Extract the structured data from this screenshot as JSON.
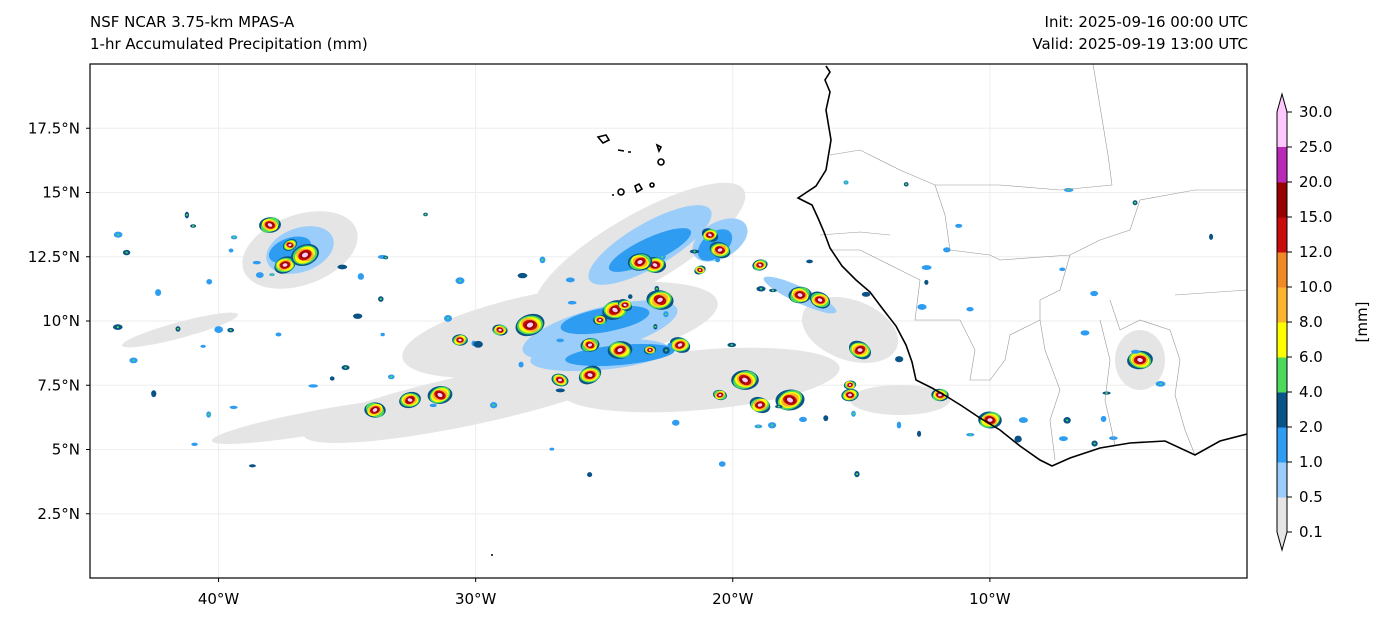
{
  "header": {
    "model": "NSF NCAR 3.75-km MPAS-A",
    "field": "1-hr Accumulated Precipitation (mm)",
    "init": "Init: 2025-09-16 00:00 UTC",
    "valid": "Valid: 2025-09-19 13:00 UTC"
  },
  "map": {
    "lon_range": [
      -45,
      0
    ],
    "lat_range": [
      0,
      20
    ],
    "lon_ticks": [
      {
        "v": -40,
        "label": "40°W"
      },
      {
        "v": -30,
        "label": "30°W"
      },
      {
        "v": -20,
        "label": "20°W"
      },
      {
        "v": -10,
        "label": "10°W"
      }
    ],
    "lat_ticks": [
      {
        "v": 17.5,
        "label": "17.5°N"
      },
      {
        "v": 15,
        "label": "15°N"
      },
      {
        "v": 12.5,
        "label": "12.5°N"
      },
      {
        "v": 10,
        "label": "10°N"
      },
      {
        "v": 7.5,
        "label": "7.5°N"
      },
      {
        "v": 5,
        "label": "5°N"
      },
      {
        "v": 2.5,
        "label": "2.5°N"
      }
    ]
  },
  "colorbar": {
    "unit_label": "[mm]",
    "levels": [
      "0.1",
      "0.5",
      "1.0",
      "2.0",
      "4.0",
      "6.0",
      "8.0",
      "10.0",
      "12.0",
      "15.0",
      "20.0",
      "25.0",
      "30.0"
    ],
    "colors": [
      "#e5e5e5",
      "#9bcdfa",
      "#2e9cf0",
      "#0a5386",
      "#4cd95c",
      "#ffff00",
      "#fbb52d",
      "#f08a26",
      "#c80c0c",
      "#960000",
      "#b829b8",
      "#ffc8ff"
    ]
  }
}
